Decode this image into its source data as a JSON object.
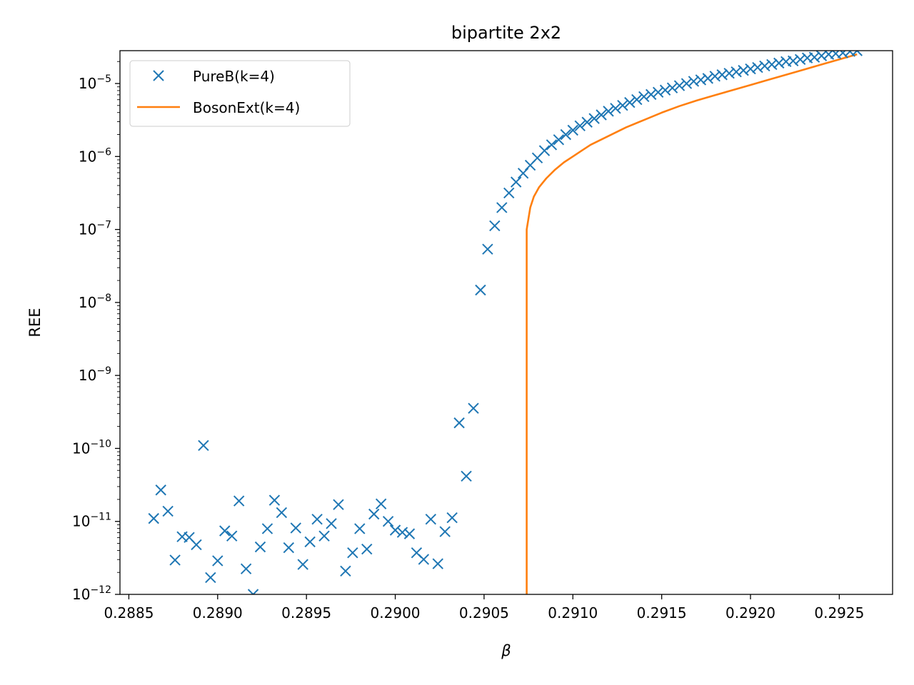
{
  "chart_data": {
    "type": "line",
    "title": "bipartite 2x2",
    "xlabel": "β",
    "ylabel": "REE",
    "y_scale": "log",
    "xlim": [
      0.28845,
      0.2928
    ],
    "ylim_exponent": [
      -12,
      -4.55
    ],
    "grid": false,
    "legend_placement": "top-left",
    "x_ticks": [
      0.2885,
      0.289,
      0.2895,
      0.29,
      0.2905,
      0.291,
      0.2915,
      0.292,
      0.2925
    ],
    "x_tick_labels": [
      "0.2885",
      "0.2890",
      "0.2895",
      "0.2900",
      "0.2905",
      "0.2910",
      "0.2915",
      "0.2920",
      "0.2925"
    ],
    "y_tick_exponents": [
      -12,
      -11,
      -10,
      -9,
      -8,
      -7,
      -6,
      -5
    ],
    "y_tick_base": "10",
    "y_tick_superscripts": [
      "−12",
      "−11",
      "−10",
      "−9",
      "−8",
      "−7",
      "−6",
      "−5"
    ],
    "series": [
      {
        "name": "PureB(k=4)",
        "marker": "x",
        "color": "#1f77b4",
        "x": [
          0.28864,
          0.28868,
          0.28872,
          0.28876,
          0.2888,
          0.28884,
          0.28888,
          0.28892,
          0.28896,
          0.289,
          0.28904,
          0.28908,
          0.28912,
          0.28916,
          0.2892,
          0.28924,
          0.28928,
          0.28932,
          0.28936,
          0.2894,
          0.28944,
          0.28948,
          0.28952,
          0.28956,
          0.2896,
          0.28964,
          0.28968,
          0.28972,
          0.28976,
          0.2898,
          0.28984,
          0.28988,
          0.28992,
          0.28996,
          0.29,
          0.29004,
          0.29008,
          0.29012,
          0.29016,
          0.2902,
          0.29024,
          0.29028,
          0.29032,
          0.29036,
          0.2904,
          0.29044,
          0.29048,
          0.29052,
          0.29056,
          0.2906,
          0.29064,
          0.29068,
          0.29072,
          0.29076,
          0.2908,
          0.29084,
          0.29088,
          0.29092,
          0.29096,
          0.291,
          0.29104,
          0.29108,
          0.29112,
          0.29116,
          0.2912,
          0.29124,
          0.29128,
          0.29132,
          0.29136,
          0.2914,
          0.29144,
          0.29148,
          0.29152,
          0.29156,
          0.2916,
          0.29164,
          0.29168,
          0.29172,
          0.29176,
          0.2918,
          0.29184,
          0.29188,
          0.29192,
          0.29196,
          0.292,
          0.29204,
          0.29208,
          0.29212,
          0.29216,
          0.2922,
          0.29224,
          0.29228,
          0.29232,
          0.29236,
          0.2924,
          0.29244,
          0.29248,
          0.29252,
          0.29256,
          0.2926
        ],
        "y_exponent": [
          -10.96,
          -10.57,
          -10.86,
          -11.53,
          -11.21,
          -11.22,
          -11.32,
          -9.96,
          -11.77,
          -11.54,
          -11.13,
          -11.2,
          -10.72,
          -11.65,
          -12.0,
          -11.35,
          -11.1,
          -10.71,
          -10.88,
          -11.36,
          -11.09,
          -11.59,
          -11.28,
          -10.97,
          -11.2,
          -11.03,
          -10.77,
          -11.68,
          -11.43,
          -11.1,
          -11.38,
          -10.9,
          -10.76,
          -11.0,
          -11.12,
          -11.15,
          -11.17,
          -11.43,
          -11.52,
          -10.97,
          -11.58,
          -11.14,
          -10.95,
          -9.65,
          -10.38,
          -9.45,
          -7.83,
          -7.27,
          -6.95,
          -6.7,
          -6.5,
          -6.35,
          -6.23,
          -6.12,
          -6.02,
          -5.92,
          -5.84,
          -5.77,
          -5.7,
          -5.64,
          -5.58,
          -5.53,
          -5.48,
          -5.43,
          -5.38,
          -5.34,
          -5.3,
          -5.26,
          -5.22,
          -5.18,
          -5.15,
          -5.12,
          -5.09,
          -5.06,
          -5.03,
          -5.0,
          -4.97,
          -4.95,
          -4.93,
          -4.9,
          -4.88,
          -4.86,
          -4.84,
          -4.82,
          -4.8,
          -4.78,
          -4.76,
          -4.74,
          -4.72,
          -4.7,
          -4.69,
          -4.67,
          -4.65,
          -4.64,
          -4.62,
          -4.6,
          -4.59,
          -4.58,
          -4.56,
          -4.55
        ]
      },
      {
        "name": "BosonExt(k=4)",
        "marker": "line",
        "color": "#ff7f0e",
        "x": [
          0.29074,
          0.29074,
          0.29075,
          0.29076,
          0.29078,
          0.29081,
          0.29085,
          0.2909,
          0.29095,
          0.291,
          0.29105,
          0.2911,
          0.2912,
          0.2913,
          0.2914,
          0.2915,
          0.2916,
          0.2917,
          0.2918,
          0.2919,
          0.292,
          0.2921,
          0.2922,
          0.2923,
          0.2924,
          0.2925,
          0.2926
        ],
        "y_exponent": [
          -12.0,
          -7.0,
          -6.85,
          -6.7,
          -6.55,
          -6.42,
          -6.3,
          -6.18,
          -6.08,
          -6.0,
          -5.92,
          -5.84,
          -5.72,
          -5.6,
          -5.5,
          -5.4,
          -5.31,
          -5.23,
          -5.16,
          -5.09,
          -5.02,
          -4.95,
          -4.88,
          -4.81,
          -4.74,
          -4.67,
          -4.6
        ]
      }
    ]
  }
}
